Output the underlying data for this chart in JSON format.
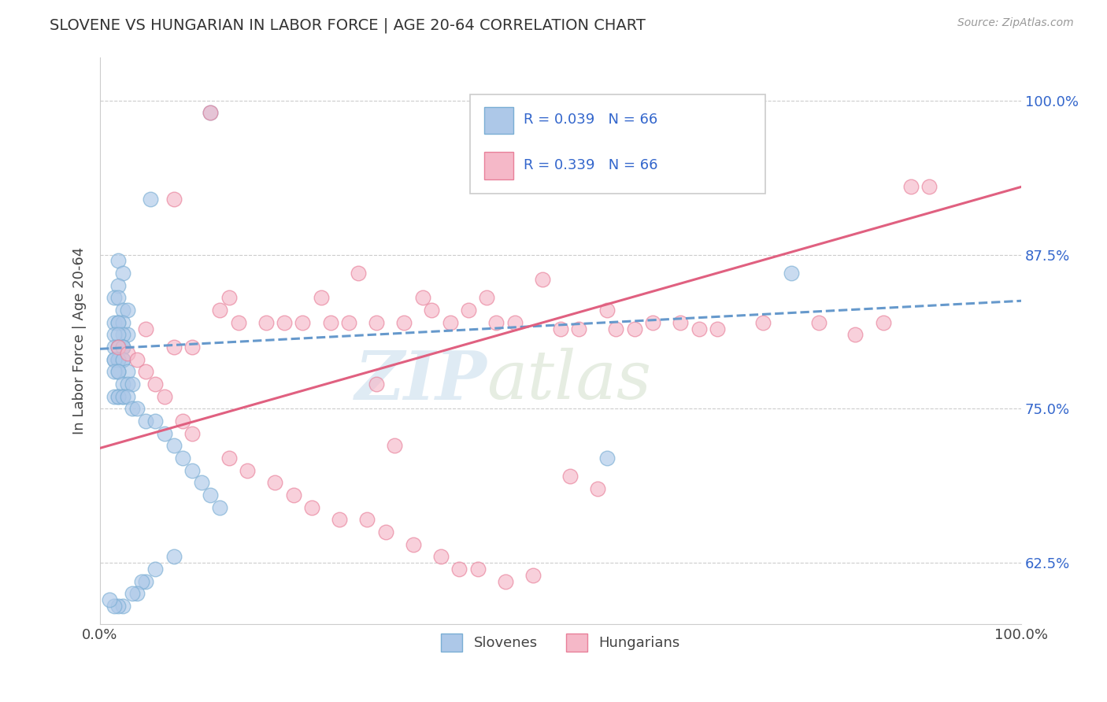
{
  "title": "SLOVENE VS HUNGARIAN IN LABOR FORCE | AGE 20-64 CORRELATION CHART",
  "source_text": "Source: ZipAtlas.com",
  "ylabel": "In Labor Force | Age 20-64",
  "watermark_zip": "ZIP",
  "watermark_atlas": "atlas",
  "legend_label_slovene": "Slovenes",
  "legend_label_hungarian": "Hungarians",
  "color_slovene_fill": "#adc8e8",
  "color_slovene_edge": "#7aaed4",
  "color_hungarian_fill": "#f5b8c8",
  "color_hungarian_edge": "#e8809a",
  "color_line_slovene": "#6699cc",
  "color_line_hungarian": "#e06080",
  "color_r_value": "#3366cc",
  "color_tick_y": "#3366cc",
  "xlim": [
    0.0,
    1.0
  ],
  "ylim": [
    0.575,
    1.035
  ],
  "y_ticks": [
    0.625,
    0.75,
    0.875,
    1.0
  ],
  "y_tick_labels": [
    "62.5%",
    "75.0%",
    "87.5%",
    "100.0%"
  ],
  "slovene_x": [
    0.12,
    0.055,
    0.02,
    0.025,
    0.02,
    0.015,
    0.02,
    0.025,
    0.03,
    0.015,
    0.02,
    0.025,
    0.02,
    0.03,
    0.025,
    0.015,
    0.02,
    0.025,
    0.02,
    0.025,
    0.015,
    0.02,
    0.025,
    0.02,
    0.015,
    0.02,
    0.025,
    0.02,
    0.015,
    0.025,
    0.03,
    0.02,
    0.015,
    0.02,
    0.025,
    0.03,
    0.035,
    0.025,
    0.02,
    0.015,
    0.02,
    0.025,
    0.03,
    0.035,
    0.04,
    0.05,
    0.06,
    0.07,
    0.08,
    0.09,
    0.1,
    0.11,
    0.12,
    0.13,
    0.08,
    0.06,
    0.05,
    0.045,
    0.04,
    0.035,
    0.025,
    0.02,
    0.015,
    0.01,
    0.55,
    0.75
  ],
  "slovene_y": [
    0.99,
    0.92,
    0.87,
    0.86,
    0.85,
    0.84,
    0.84,
    0.83,
    0.83,
    0.82,
    0.82,
    0.82,
    0.82,
    0.81,
    0.81,
    0.81,
    0.81,
    0.8,
    0.8,
    0.8,
    0.8,
    0.8,
    0.8,
    0.79,
    0.79,
    0.79,
    0.79,
    0.79,
    0.79,
    0.79,
    0.78,
    0.78,
    0.78,
    0.78,
    0.77,
    0.77,
    0.77,
    0.76,
    0.76,
    0.76,
    0.76,
    0.76,
    0.76,
    0.75,
    0.75,
    0.74,
    0.74,
    0.73,
    0.72,
    0.71,
    0.7,
    0.69,
    0.68,
    0.67,
    0.63,
    0.62,
    0.61,
    0.61,
    0.6,
    0.6,
    0.59,
    0.59,
    0.59,
    0.595,
    0.71,
    0.86
  ],
  "hungarian_x": [
    0.12,
    0.14,
    0.08,
    0.24,
    0.28,
    0.13,
    0.35,
    0.42,
    0.48,
    0.55,
    0.02,
    0.03,
    0.04,
    0.82,
    0.88,
    0.05,
    0.08,
    0.1,
    0.15,
    0.18,
    0.2,
    0.22,
    0.25,
    0.27,
    0.3,
    0.33,
    0.36,
    0.38,
    0.4,
    0.43,
    0.45,
    0.5,
    0.52,
    0.56,
    0.58,
    0.6,
    0.63,
    0.65,
    0.67,
    0.72,
    0.78,
    0.85,
    0.9,
    0.05,
    0.06,
    0.07,
    0.3,
    0.09,
    0.1,
    0.32,
    0.14,
    0.16,
    0.19,
    0.21,
    0.23,
    0.26,
    0.29,
    0.31,
    0.34,
    0.37,
    0.39,
    0.41,
    0.44,
    0.47,
    0.51,
    0.54
  ],
  "hungarian_y": [
    0.99,
    0.84,
    0.92,
    0.84,
    0.86,
    0.83,
    0.84,
    0.84,
    0.855,
    0.83,
    0.8,
    0.795,
    0.79,
    0.81,
    0.93,
    0.815,
    0.8,
    0.8,
    0.82,
    0.82,
    0.82,
    0.82,
    0.82,
    0.82,
    0.82,
    0.82,
    0.83,
    0.82,
    0.83,
    0.82,
    0.82,
    0.815,
    0.815,
    0.815,
    0.815,
    0.82,
    0.82,
    0.815,
    0.815,
    0.82,
    0.82,
    0.82,
    0.93,
    0.78,
    0.77,
    0.76,
    0.77,
    0.74,
    0.73,
    0.72,
    0.71,
    0.7,
    0.69,
    0.68,
    0.67,
    0.66,
    0.66,
    0.65,
    0.64,
    0.63,
    0.62,
    0.62,
    0.61,
    0.615,
    0.695,
    0.685
  ],
  "slovene_trend": [
    0.7985,
    0.039
  ],
  "hungarian_trend": [
    0.718,
    0.212
  ],
  "background_color": "#ffffff",
  "grid_color": "#cccccc"
}
